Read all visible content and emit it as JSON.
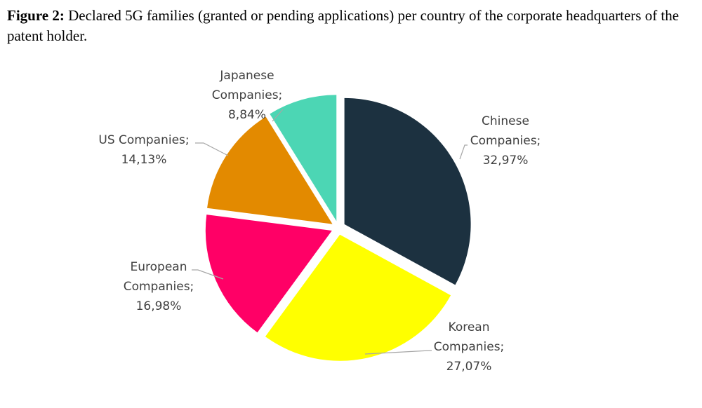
{
  "figure": {
    "label": "Figure 2:",
    "caption": "Declared 5G families (granted or pending applications) per country of the corporate headquarters of the patent holder."
  },
  "chart_data": {
    "type": "pie",
    "title": "",
    "slices": [
      {
        "name": "Chinese Companies",
        "value": 32.97,
        "label": [
          "Chinese",
          "Companies;",
          "32,97%"
        ],
        "color": "#1c3140"
      },
      {
        "name": "Korean Companies",
        "value": 27.07,
        "label": [
          "Korean",
          "Companies;",
          "27,07%"
        ],
        "color": "#ffff00"
      },
      {
        "name": "European Companies",
        "value": 16.98,
        "label": [
          "European",
          "Companies;",
          "16,98%"
        ],
        "color": "#ff0066"
      },
      {
        "name": "US Companies",
        "value": 14.13,
        "label": [
          "US Companies;",
          "14,13%"
        ],
        "color": "#e38a00"
      },
      {
        "name": "Japanese Companies",
        "value": 8.84,
        "label": [
          "Japanese",
          "Companies;",
          "8,84%"
        ],
        "color": "#4cd6b4"
      }
    ]
  }
}
